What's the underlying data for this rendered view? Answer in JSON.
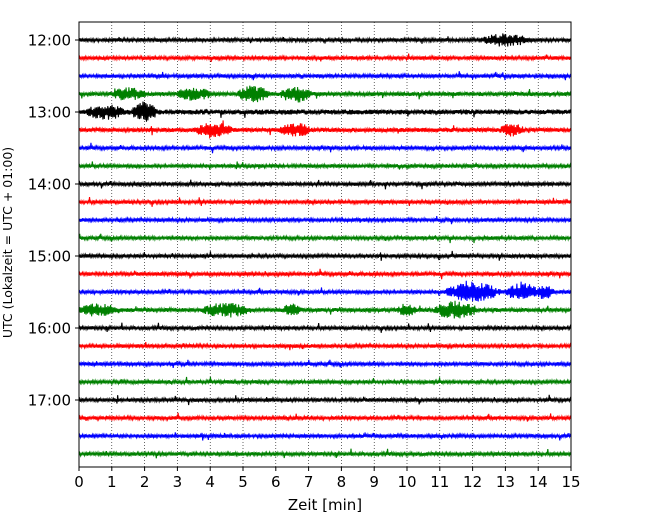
{
  "chart_data": {
    "type": "line",
    "xlabel": "Zeit  [min]",
    "ylabel": "UTC (Lokalzeit = UTC + 01:00)",
    "xlim": [
      0,
      15
    ],
    "x_ticks": [
      "0",
      "1",
      "2",
      "3",
      "4",
      "5",
      "6",
      "7",
      "8",
      "9",
      "10",
      "11",
      "12",
      "13",
      "14",
      "15"
    ],
    "y_ticks": [
      "12:00",
      "13:00",
      "14:00",
      "15:00",
      "16:00",
      "17:00"
    ],
    "grid_x": true,
    "trace_colors": [
      "#000000",
      "#ff0000",
      "#0000ff",
      "#008000"
    ],
    "traces": [
      {
        "start": "12:00",
        "color_index": 0,
        "amp": 1.0,
        "bursts": [
          [
            13.0,
            0.8,
            1.6
          ]
        ]
      },
      {
        "start": "12:15",
        "color_index": 1,
        "amp": 1.0,
        "bursts": []
      },
      {
        "start": "12:30",
        "color_index": 2,
        "amp": 1.0,
        "bursts": []
      },
      {
        "start": "12:45",
        "color_index": 3,
        "amp": 1.1,
        "bursts": [
          [
            1.5,
            0.6,
            1.6
          ],
          [
            3.5,
            0.6,
            1.5
          ],
          [
            5.3,
            0.5,
            2.2
          ],
          [
            6.6,
            0.5,
            2.2
          ]
        ]
      },
      {
        "start": "13:00",
        "color_index": 0,
        "amp": 1.4,
        "bursts": [
          [
            0.8,
            0.6,
            1.8
          ],
          [
            2.0,
            0.4,
            2.8
          ]
        ]
      },
      {
        "start": "13:15",
        "color_index": 1,
        "amp": 1.2,
        "bursts": [
          [
            4.1,
            0.6,
            1.8
          ],
          [
            6.6,
            0.5,
            1.6
          ],
          [
            13.2,
            0.4,
            1.4
          ]
        ]
      },
      {
        "start": "13:30",
        "color_index": 2,
        "amp": 1.0,
        "bursts": []
      },
      {
        "start": "13:45",
        "color_index": 3,
        "amp": 1.0,
        "bursts": []
      },
      {
        "start": "14:00",
        "color_index": 0,
        "amp": 1.0,
        "bursts": []
      },
      {
        "start": "14:15",
        "color_index": 1,
        "amp": 1.0,
        "bursts": []
      },
      {
        "start": "14:30",
        "color_index": 2,
        "amp": 1.0,
        "bursts": []
      },
      {
        "start": "14:45",
        "color_index": 3,
        "amp": 1.0,
        "bursts": []
      },
      {
        "start": "15:00",
        "color_index": 0,
        "amp": 1.0,
        "bursts": []
      },
      {
        "start": "15:15",
        "color_index": 1,
        "amp": 1.0,
        "bursts": []
      },
      {
        "start": "15:30",
        "color_index": 2,
        "amp": 1.0,
        "bursts": [
          [
            12.0,
            0.9,
            2.6
          ],
          [
            13.5,
            0.5,
            2.8
          ],
          [
            14.2,
            0.3,
            1.8
          ]
        ]
      },
      {
        "start": "15:45",
        "color_index": 3,
        "amp": 1.1,
        "bursts": [
          [
            0.6,
            0.7,
            1.6
          ],
          [
            4.5,
            0.8,
            1.8
          ],
          [
            6.5,
            0.3,
            1.6
          ],
          [
            10.0,
            0.3,
            1.6
          ],
          [
            11.5,
            0.7,
            2.4
          ]
        ]
      },
      {
        "start": "16:00",
        "color_index": 0,
        "amp": 1.0,
        "bursts": []
      },
      {
        "start": "16:15",
        "color_index": 1,
        "amp": 1.0,
        "bursts": []
      },
      {
        "start": "16:30",
        "color_index": 2,
        "amp": 1.0,
        "bursts": []
      },
      {
        "start": "16:45",
        "color_index": 3,
        "amp": 1.0,
        "bursts": []
      },
      {
        "start": "17:00",
        "color_index": 0,
        "amp": 1.0,
        "bursts": []
      },
      {
        "start": "17:15",
        "color_index": 1,
        "amp": 1.0,
        "bursts": []
      },
      {
        "start": "17:30",
        "color_index": 2,
        "amp": 1.0,
        "bursts": []
      },
      {
        "start": "17:45",
        "color_index": 3,
        "amp": 1.0,
        "bursts": []
      }
    ]
  }
}
